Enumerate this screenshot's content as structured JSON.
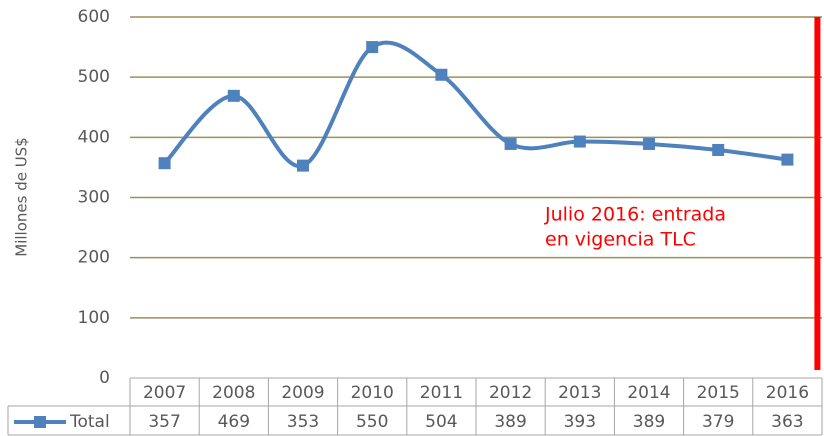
{
  "chart_data": {
    "type": "line",
    "y_label": "Millones de US$",
    "categories": [
      "2007",
      "2008",
      "2009",
      "2010",
      "2011",
      "2012",
      "2013",
      "2014",
      "2015",
      "2016"
    ],
    "series": [
      {
        "name": "Total",
        "color": "#4f81bd",
        "values": [
          357,
          469,
          353,
          550,
          504,
          389,
          393,
          389,
          379,
          363
        ]
      }
    ],
    "ylim": [
      0,
      600
    ],
    "yticks": [
      0,
      100,
      200,
      300,
      400,
      500,
      600
    ],
    "grid": true,
    "data_table": true,
    "annotation": {
      "lines": [
        "Julio 2016: entrada",
        "en vigencia TLC"
      ],
      "at": "2016",
      "color": "#ff0000"
    }
  }
}
